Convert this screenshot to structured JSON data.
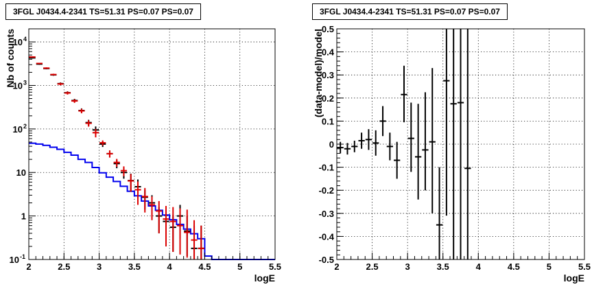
{
  "chart_data": [
    {
      "type": "line",
      "title": "3FGL J0434.4-2341 TS=51.31 PS=0.07 PS=0.07",
      "xlabel": "logE",
      "ylabel": "Nb of counts",
      "xlim": [
        2,
        5.5
      ],
      "ylim": [
        0.1,
        20000
      ],
      "yscale": "log",
      "grid": true,
      "x_ticks": [
        "2",
        "2.5",
        "3",
        "3.5",
        "4",
        "4.5",
        "5",
        "5.5"
      ],
      "y_ticks": [
        {
          "v": 0.1,
          "label": "10",
          "sup": "-1"
        },
        {
          "v": 1,
          "label": "1",
          "sup": ""
        },
        {
          "v": 10,
          "label": "10",
          "sup": ""
        },
        {
          "v": 100,
          "label": "10",
          "sup": "2"
        },
        {
          "v": 1000,
          "label": "10",
          "sup": "3"
        },
        {
          "v": 10000,
          "label": "10",
          "sup": "4"
        }
      ],
      "bin_edges": [
        2.0,
        2.1,
        2.2,
        2.3,
        2.4,
        2.5,
        2.6,
        2.7,
        2.8,
        2.9,
        3.0,
        3.1,
        3.2,
        3.3,
        3.4,
        3.5,
        3.6,
        3.7,
        3.8,
        3.9,
        4.0,
        4.1,
        4.2,
        4.3,
        4.4,
        4.5,
        4.6,
        4.7,
        4.8,
        4.9,
        5.0,
        5.1,
        5.2,
        5.3,
        5.4,
        5.5
      ],
      "series": [
        {
          "style": "histogram",
          "color": "#0000ee",
          "values": [
            47,
            45,
            42,
            38,
            34,
            29,
            25,
            20,
            17,
            13,
            9.8,
            7.8,
            6.2,
            4.8,
            3.7,
            2.9,
            2.2,
            1.7,
            1.35,
            1.05,
            0.82,
            0.64,
            0.5,
            0.39,
            0.3,
            0.12,
            0.1,
            0.1,
            0.1,
            0.1,
            0.1,
            0.1,
            0.1,
            0.1,
            0.1
          ]
        },
        {
          "style": "errorbar",
          "color": "#000000",
          "x": [
            2.05,
            2.15,
            2.25,
            2.35,
            2.45,
            2.55,
            2.65,
            2.75,
            2.85,
            2.95,
            3.05,
            3.15,
            3.25,
            3.35,
            3.45,
            3.55,
            3.65,
            3.75,
            3.85,
            3.95,
            4.05,
            4.15,
            4.25,
            4.35,
            4.45
          ],
          "y": [
            4300,
            3100,
            2450,
            1750,
            1100,
            680,
            450,
            265,
            140,
            95,
            45,
            27,
            16,
            10,
            6.5,
            4.7,
            2.7,
            2.0,
            1.0,
            0.75,
            0.55,
            1.0,
            0.45,
            0.18,
            0.18
          ],
          "lo": [
            4170,
            2990,
            2350,
            1670,
            1030,
            628,
            408,
            233,
            118,
            76,
            38.5,
            22,
            12.5,
            7.2,
            3.6,
            2.5,
            1.4,
            1.0,
            0.4,
            0.2,
            0.15,
            0.3,
            0.12,
            0.1,
            0.1
          ],
          "hi": [
            4430,
            3210,
            2550,
            1830,
            1170,
            732,
            492,
            297,
            162,
            114,
            51.5,
            32,
            19.5,
            12.8,
            9.4,
            6.9,
            4.0,
            3.0,
            1.6,
            1.3,
            1.05,
            1.8,
            1.0,
            0.6,
            0.6
          ]
        },
        {
          "style": "errorbar",
          "color": "#dd0000",
          "x": [
            2.05,
            2.15,
            2.25,
            2.35,
            2.45,
            2.55,
            2.65,
            2.75,
            2.85,
            2.95,
            3.05,
            3.15,
            3.25,
            3.35,
            3.45,
            3.55,
            3.65,
            3.75,
            3.85,
            3.95,
            4.05,
            4.15,
            4.25,
            4.35,
            4.45
          ],
          "y": [
            4500,
            3200,
            2500,
            1780,
            1080,
            670,
            440,
            260,
            135,
            82,
            48,
            27,
            17,
            11,
            6.4,
            4.0,
            2.8,
            1.8,
            1.3,
            0.85,
            0.75,
            0.6,
            0.42,
            0.28,
            0.18
          ],
          "lo": [
            4370,
            3090,
            2400,
            1700,
            1010,
            618,
            398,
            229,
            113,
            64,
            41.5,
            22,
            13.5,
            8.2,
            3.6,
            1.8,
            1.2,
            0.8,
            0.4,
            0.2,
            0.15,
            0.13,
            0.11,
            0.1,
            0.1
          ],
          "hi": [
            4630,
            3310,
            2600,
            1860,
            1150,
            722,
            482,
            291,
            157,
            100,
            54.5,
            32,
            20.5,
            13.8,
            9.2,
            6.2,
            4.4,
            2.8,
            2.2,
            1.7,
            1.6,
            1.5,
            1.4,
            0.8,
            0.6
          ]
        }
      ]
    },
    {
      "type": "scatter",
      "title": "3FGL J0434.4-2341 TS=51.31 PS=0.07 PS=0.07",
      "xlabel": "logE",
      "ylabel": "(data-model)/model",
      "xlim": [
        2,
        5.5
      ],
      "ylim": [
        -0.5,
        0.5
      ],
      "grid": true,
      "x_ticks": [
        "2",
        "2.5",
        "3",
        "3.5",
        "4",
        "4.5",
        "5",
        "5.5"
      ],
      "y_ticks": [
        "-0.5",
        "-0.4",
        "-0.3",
        "-0.2",
        "-0.1",
        "0",
        "0.1",
        "0.2",
        "0.3",
        "0.4",
        "0.5"
      ],
      "series": [
        {
          "style": "errorbar",
          "color": "#000000",
          "x": [
            2.05,
            2.15,
            2.25,
            2.35,
            2.45,
            2.55,
            2.65,
            2.75,
            2.85,
            2.95,
            3.05,
            3.15,
            3.25,
            3.35,
            3.45,
            3.55,
            3.65,
            3.75,
            3.85
          ],
          "y": [
            -0.015,
            -0.02,
            -0.01,
            0.015,
            0.02,
            0.005,
            0.1,
            -0.01,
            -0.07,
            0.215,
            0.025,
            -0.055,
            -0.025,
            0.01,
            -0.35,
            0.275,
            0.175,
            0.18,
            -0.105
          ],
          "lo": [
            -0.04,
            -0.045,
            -0.035,
            -0.02,
            -0.025,
            -0.05,
            0.035,
            -0.07,
            -0.15,
            0.095,
            -0.12,
            -0.24,
            -0.2,
            -0.3,
            -0.6,
            -0.31,
            -0.6,
            -0.6,
            -0.6
          ],
          "hi": [
            0.01,
            0.005,
            0.015,
            0.05,
            0.065,
            0.06,
            0.165,
            0.05,
            0.01,
            0.34,
            0.18,
            0.175,
            0.225,
            0.33,
            -0.1,
            0.6,
            0.6,
            0.6,
            0.6
          ]
        }
      ]
    }
  ]
}
